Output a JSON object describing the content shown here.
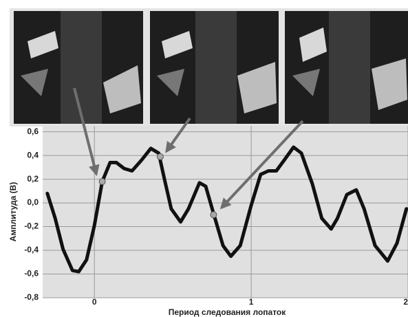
{
  "chart_data": {
    "type": "line",
    "y_label": "Амплитуда (В)",
    "x_label": "Период следования лопаток",
    "x": [
      -0.3,
      -0.25,
      -0.2,
      -0.14,
      -0.1,
      -0.05,
      0,
      0.05,
      0.1,
      0.14,
      0.19,
      0.24,
      0.3,
      0.36,
      0.41,
      0.45,
      0.49,
      0.55,
      0.6,
      0.67,
      0.71,
      0.76,
      0.82,
      0.87,
      0.93,
      1.0,
      1.06,
      1.11,
      1.16,
      1.21,
      1.27,
      1.32,
      1.39,
      1.45,
      1.51,
      1.55,
      1.61,
      1.67,
      1.72,
      1.79,
      1.87,
      1.93,
      1.99
    ],
    "values": [
      0.08,
      -0.13,
      -0.39,
      -0.57,
      -0.58,
      -0.48,
      -0.19,
      0.18,
      0.34,
      0.34,
      0.29,
      0.27,
      0.36,
      0.46,
      0.42,
      0.18,
      -0.05,
      -0.16,
      -0.05,
      0.17,
      0.14,
      -0.09,
      -0.36,
      -0.45,
      -0.36,
      -0.02,
      0.24,
      0.27,
      0.27,
      0.36,
      0.47,
      0.42,
      0.16,
      -0.13,
      -0.22,
      -0.13,
      0.07,
      0.11,
      -0.05,
      -0.36,
      -0.49,
      -0.34,
      -0.05
    ],
    "color": "#111111",
    "points": {
      "x": [
        0.05,
        0.42,
        0.76
      ],
      "values": [
        0.18,
        0.39,
        -0.1
      ],
      "color": "#a8a8a8"
    },
    "xlim": [
      -0.33,
      2.0
    ],
    "ylim": [
      -0.8,
      0.65
    ],
    "xticks": [
      0,
      1,
      2
    ],
    "yticks": [
      {
        "value": 0.6,
        "label": "0,6"
      },
      {
        "value": 0.4,
        "label": "0,4"
      },
      {
        "value": 0.2,
        "label": "0,2"
      },
      {
        "value": 0,
        "label": "0,0"
      },
      {
        "value": -0.2,
        "label": "-0,2"
      },
      {
        "value": -0.4,
        "label": "-0,4"
      },
      {
        "value": -0.6,
        "label": "-0,6"
      },
      {
        "value": -0.8,
        "label": "-0,8"
      }
    ],
    "grid": true
  }
}
